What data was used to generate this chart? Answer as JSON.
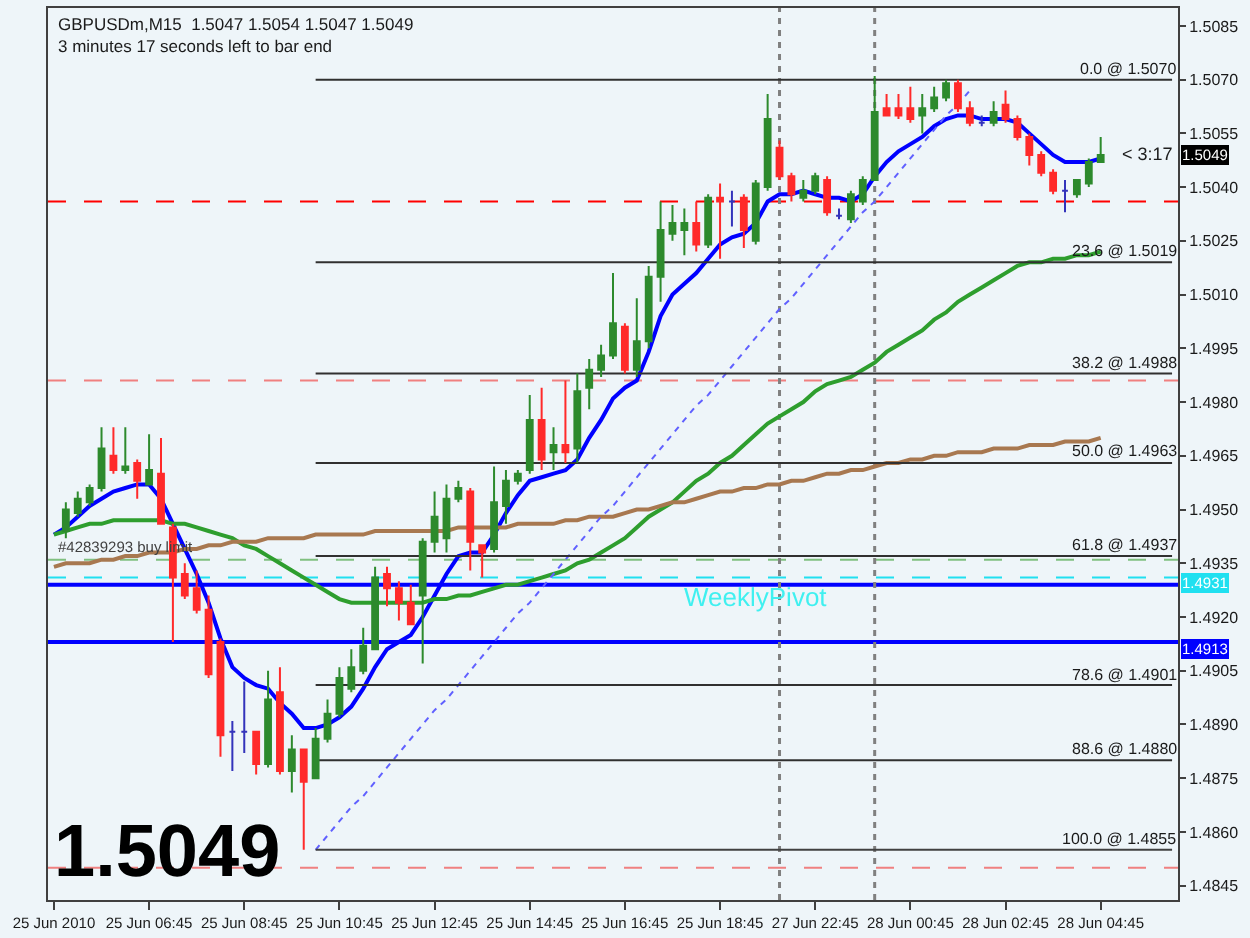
{
  "chart_data": {
    "type": "candlestick",
    "title": "GBPUSDm,M15  1.5047 1.5054 1.5047 1.5049",
    "subtitle": "3 minutes 17 seconds left to bar end",
    "legend": "right",
    "categories": [
      "25 Jun 2010",
      null,
      null,
      null,
      null,
      null,
      null,
      null,
      "25 Jun 06:45",
      null,
      null,
      null,
      null,
      null,
      null,
      null,
      "25 Jun 08:45",
      null,
      null,
      null,
      null,
      null,
      null,
      null,
      "25 Jun 10:45",
      null,
      null,
      null,
      null,
      null,
      null,
      null,
      "25 Jun 12:45",
      null,
      null,
      null,
      null,
      null,
      null,
      null,
      "25 Jun 14:45",
      null,
      null,
      null,
      null,
      null,
      null,
      null,
      "25 Jun 16:45",
      null,
      null,
      null,
      null,
      null,
      null,
      null,
      "25 Jun 18:45",
      null,
      null,
      null,
      null,
      null,
      null,
      null,
      "27 Jun 22:45",
      null,
      null,
      null,
      null,
      null,
      null,
      null,
      "28 Jun 00:45",
      null,
      null,
      null,
      null,
      null,
      null,
      null,
      "28 Jun 02:45",
      null,
      null,
      null,
      null,
      null,
      null,
      null,
      "28 Jun 04:45",
      null,
      null,
      null,
      null,
      null,
      null
    ],
    "ohlc": [
      null,
      [
        1.4944,
        1.4952,
        1.4942,
        1.495
      ],
      [
        1.4949,
        1.4955,
        1.4948,
        1.4953
      ],
      [
        1.4952,
        1.4957,
        1.4951,
        1.4956
      ],
      [
        1.4956,
        1.4973,
        1.4955,
        1.4967
      ],
      [
        1.4965,
        1.4973,
        1.496,
        1.4961
      ],
      [
        1.4961,
        1.4973,
        1.496,
        1.4962
      ],
      [
        1.4963,
        1.4964,
        1.4953,
        1.4958
      ],
      [
        1.4957,
        1.4971,
        1.4957,
        1.4961
      ],
      [
        1.496,
        1.497,
        1.4946,
        1.4946
      ],
      [
        1.4945,
        1.4946,
        1.4913,
        1.4931
      ],
      [
        1.4932,
        1.4935,
        1.4925,
        1.4926
      ],
      [
        1.4928,
        1.4933,
        1.4921,
        1.4922
      ],
      [
        1.4922,
        1.4926,
        1.4903,
        1.4904
      ],
      [
        1.4913,
        1.4914,
        1.4881,
        1.4887
      ],
      [
        1.4888,
        1.4891,
        1.4877,
        1.4888
      ],
      [
        1.4888,
        1.4902,
        1.4882,
        1.4888
      ],
      [
        1.4888,
        1.4888,
        1.4876,
        1.4879
      ],
      [
        1.4879,
        1.4905,
        1.4878,
        1.4897
      ],
      [
        1.4899,
        1.4906,
        1.4876,
        1.4877
      ],
      [
        1.4877,
        1.4887,
        1.4871,
        1.4883
      ],
      [
        1.4883,
        1.4883,
        1.4855,
        1.4874
      ],
      [
        1.4875,
        1.4889,
        1.4875,
        1.4886
      ],
      [
        1.4886,
        1.4897,
        1.4885,
        1.4893
      ],
      [
        1.4893,
        1.4906,
        1.4892,
        1.4903
      ],
      [
        1.49,
        1.4911,
        1.4899,
        1.4906
      ],
      [
        1.4905,
        1.4917,
        1.4904,
        1.4912
      ],
      [
        1.4911,
        1.4934,
        1.4911,
        1.4931
      ],
      [
        1.4932,
        1.4934,
        1.4923,
        1.4928
      ],
      [
        1.4928,
        1.493,
        1.4919,
        1.4924
      ],
      [
        1.4924,
        1.4929,
        1.4918,
        1.4918
      ],
      [
        1.4926,
        1.4942,
        1.4907,
        1.4941
      ],
      [
        1.4941,
        1.4955,
        1.4938,
        1.4948
      ],
      [
        1.4942,
        1.4957,
        1.4938,
        1.4953
      ],
      [
        1.4953,
        1.4958,
        1.4952,
        1.4956
      ],
      [
        1.4955,
        1.4956,
        1.4933,
        1.4941
      ],
      [
        1.494,
        1.494,
        1.4931,
        1.4938
      ],
      [
        1.4939,
        1.4962,
        1.4938,
        1.4952
      ],
      [
        1.4951,
        1.4961,
        1.4946,
        1.4958
      ],
      [
        1.4958,
        1.4961,
        1.4957,
        1.496
      ],
      [
        1.4961,
        1.4982,
        1.496,
        1.4975
      ],
      [
        1.4975,
        1.4984,
        1.4961,
        1.4964
      ],
      [
        1.4966,
        1.4973,
        1.4961,
        1.4968
      ],
      [
        1.4968,
        1.4986,
        1.4963,
        1.4966
      ],
      [
        1.4967,
        1.4988,
        1.4963,
        1.4983
      ],
      [
        1.4984,
        1.4992,
        1.4978,
        1.4989
      ],
      [
        1.4989,
        1.4996,
        1.4987,
        1.4993
      ],
      [
        1.4993,
        1.5016,
        1.4992,
        1.5002
      ],
      [
        1.5001,
        1.5002,
        1.4988,
        1.4989
      ],
      [
        1.4989,
        1.5009,
        1.4987,
        1.4997
      ],
      [
        1.4997,
        1.5018,
        1.4995,
        1.5015
      ],
      [
        1.5015,
        1.5036,
        1.5008,
        1.5028
      ],
      [
        1.5027,
        1.5035,
        1.5025,
        1.503
      ],
      [
        1.5028,
        1.5034,
        1.5021,
        1.503
      ],
      [
        1.503,
        1.5036,
        1.5022,
        1.5024
      ],
      [
        1.5024,
        1.5038,
        1.5023,
        1.5037
      ],
      [
        1.5037,
        1.5041,
        1.502,
        1.5036
      ],
      [
        1.5036,
        1.5039,
        1.5029,
        1.5036
      ],
      [
        1.5037,
        1.5038,
        1.5023,
        1.5028
      ],
      [
        1.5025,
        1.5042,
        1.5024,
        1.5041
      ],
      [
        1.504,
        1.5066,
        1.5039,
        1.5059
      ],
      [
        1.5051,
        1.5053,
        1.5042,
        1.5043
      ],
      [
        1.5043,
        1.5044,
        1.5036,
        1.5038
      ],
      [
        1.5037,
        1.5042,
        1.5036,
        1.5039
      ],
      [
        1.5039,
        1.5044,
        1.5038,
        1.5043
      ],
      [
        1.5042,
        1.5043,
        1.5032,
        1.5033
      ],
      [
        1.5032,
        1.5034,
        1.5031,
        1.5032
      ],
      [
        1.5031,
        1.5039,
        1.503,
        1.5038
      ],
      [
        1.5036,
        1.5043,
        1.5035,
        1.5042
      ],
      [
        1.5042,
        1.5071,
        1.5042,
        1.5061
      ],
      [
        1.5062,
        1.5066,
        1.506,
        1.506
      ],
      [
        1.5062,
        1.5066,
        1.5059,
        1.506
      ],
      [
        1.5062,
        1.5068,
        1.5058,
        1.5059
      ],
      [
        1.506,
        1.5066,
        1.5055,
        1.5062
      ],
      [
        1.5062,
        1.5068,
        1.5061,
        1.5065
      ],
      [
        1.5065,
        1.507,
        1.5064,
        1.5069
      ],
      [
        1.5069,
        1.507,
        1.5061,
        1.5062
      ],
      [
        1.5062,
        1.5064,
        1.5057,
        1.5058
      ],
      [
        1.5058,
        1.506,
        1.5057,
        1.5058
      ],
      [
        1.5058,
        1.5064,
        1.5057,
        1.5061
      ],
      [
        1.5063,
        1.5067,
        1.5058,
        1.5059
      ],
      [
        1.5059,
        1.506,
        1.5053,
        1.5054
      ],
      [
        1.5054,
        1.5055,
        1.5046,
        1.5049
      ],
      [
        1.5049,
        1.505,
        1.5043,
        1.5044
      ],
      [
        1.5044,
        1.5045,
        1.5038,
        1.5039
      ],
      [
        1.5039,
        1.5042,
        1.5033,
        1.5039
      ],
      [
        1.5038,
        1.5042,
        1.5037,
        1.5042
      ],
      [
        1.5041,
        1.5048,
        1.504,
        1.5047
      ],
      [
        1.5047,
        1.5054,
        1.5047,
        1.5049
      ],
      null,
      null,
      null,
      null,
      null,
      null
    ],
    "colors": [
      null,
      "#2d8a2d",
      "#2d8a2d",
      "#2d8a2d",
      "#2d8a2d",
      "#ff2a2a",
      "#2d8a2d",
      "#ff2a2a",
      "#2d8a2d",
      "#ff2a2a",
      "#ff2a2a",
      "#ff2a2a",
      "#ff2a2a",
      "#ff2a2a",
      "#ff2a2a",
      "#3333bb",
      "#3333bb",
      "#ff2a2a",
      "#2d8a2d",
      "#ff2a2a",
      "#2d8a2d",
      "#ff2a2a",
      "#2d8a2d",
      "#2d8a2d",
      "#2d8a2d",
      "#2d8a2d",
      "#2d8a2d",
      "#2d8a2d",
      "#ff2a2a",
      "#ff2a2a",
      "#ff2a2a",
      "#2d8a2d",
      "#2d8a2d",
      "#2d8a2d",
      "#2d8a2d",
      "#ff2a2a",
      "#ff2a2a",
      "#2d8a2d",
      "#2d8a2d",
      "#2d8a2d",
      "#2d8a2d",
      "#ff2a2a",
      "#2d8a2d",
      "#ff2a2a",
      "#2d8a2d",
      "#2d8a2d",
      "#2d8a2d",
      "#2d8a2d",
      "#ff2a2a",
      "#2d8a2d",
      "#2d8a2d",
      "#2d8a2d",
      "#2d8a2d",
      "#2d8a2d",
      "#ff2a2a",
      "#2d8a2d",
      "#ff2a2a",
      "#3333bb",
      "#ff2a2a",
      "#2d8a2d",
      "#2d8a2d",
      "#ff2a2a",
      "#ff2a2a",
      "#2d8a2d",
      "#2d8a2d",
      "#ff2a2a",
      "#3333bb",
      "#2d8a2d",
      "#2d8a2d",
      "#2d8a2d",
      "#ff2a2a",
      "#ff2a2a",
      "#ff2a2a",
      "#2d8a2d",
      "#2d8a2d",
      "#2d8a2d",
      "#ff2a2a",
      "#ff2a2a",
      "#3333bb",
      "#2d8a2d",
      "#ff2a2a",
      "#ff2a2a",
      "#ff2a2a",
      "#ff2a2a",
      "#ff2a2a",
      "#3333bb",
      "#2d8a2d",
      "#2d8a2d",
      "#2d8a2d",
      null,
      null,
      null,
      null,
      null,
      null
    ],
    "series": [
      {
        "type": "line",
        "color": "#0000ff",
        "values": [
          1.4943,
          1.4945,
          1.4948,
          1.4951,
          1.4953,
          1.4955,
          1.4956,
          1.4957,
          1.4957,
          1.4953,
          1.4946,
          1.4939,
          1.4932,
          1.4924,
          1.4914,
          1.4906,
          1.4903,
          1.4901,
          1.49,
          1.4896,
          1.4893,
          1.4889,
          1.4889,
          1.489,
          1.4892,
          1.4895,
          1.49,
          1.4906,
          1.4911,
          1.4913,
          1.4915,
          1.492,
          1.4926,
          1.4932,
          1.4937,
          1.4938,
          1.4938,
          1.4943,
          1.4949,
          1.4954,
          1.4958,
          1.4959,
          1.496,
          1.4961,
          1.4964,
          1.497,
          1.4975,
          1.4981,
          1.4984,
          1.4986,
          1.4994,
          1.5004,
          1.501,
          1.5013,
          1.5016,
          1.502,
          1.5024,
          1.5026,
          1.5027,
          1.503,
          1.5036,
          1.5038,
          1.5038,
          1.5039,
          1.5038,
          1.5037,
          1.5037,
          1.5036,
          1.5038,
          1.5043,
          1.5047,
          1.505,
          1.5052,
          1.5054,
          1.5057,
          1.5059,
          1.506,
          1.506,
          1.5059,
          1.5059,
          1.5059,
          1.5058,
          1.5055,
          1.5052,
          1.5049,
          1.5047,
          1.5047,
          1.5047,
          1.5048,
          null,
          null,
          null,
          null,
          null,
          null
        ]
      },
      {
        "type": "line",
        "color": "#2e9e2e",
        "values": [
          1.4943,
          1.4944,
          1.4945,
          1.4946,
          1.4946,
          1.4947,
          1.4947,
          1.4947,
          1.4947,
          1.4947,
          1.4946,
          1.4946,
          1.4945,
          1.4944,
          1.4943,
          1.4942,
          1.494,
          1.4939,
          1.4937,
          1.4935,
          1.4933,
          1.4931,
          1.4929,
          1.4927,
          1.4925,
          1.4924,
          1.4924,
          1.4924,
          1.4924,
          1.4924,
          1.4924,
          1.4924,
          1.4925,
          1.4925,
          1.4926,
          1.4926,
          1.4927,
          1.4928,
          1.4929,
          1.4929,
          1.493,
          1.4931,
          1.4932,
          1.4933,
          1.4935,
          1.4936,
          1.4938,
          1.494,
          1.4942,
          1.4945,
          1.4948,
          1.495,
          1.4952,
          1.4955,
          1.4958,
          1.496,
          1.4963,
          1.4965,
          1.4968,
          1.4971,
          1.4974,
          1.4976,
          1.4978,
          1.498,
          1.4983,
          1.4985,
          1.4986,
          1.4987,
          1.4989,
          1.4991,
          1.4994,
          1.4996,
          1.4998,
          1.5,
          1.5003,
          1.5005,
          1.5008,
          1.501,
          1.5012,
          1.5014,
          1.5016,
          1.5018,
          1.5019,
          1.5019,
          1.502,
          1.502,
          1.5021,
          1.5021,
          1.5022,
          null,
          null,
          null,
          null,
          null,
          null
        ]
      },
      {
        "type": "line",
        "color": "#a87850",
        "values": [
          1.4934,
          1.4935,
          1.4935,
          1.4935,
          1.4936,
          1.4936,
          1.4937,
          1.4937,
          1.4938,
          1.4938,
          1.4938,
          1.4939,
          1.4939,
          1.494,
          1.494,
          1.4941,
          1.4941,
          1.4941,
          1.4942,
          1.4942,
          1.4942,
          1.4942,
          1.4943,
          1.4943,
          1.4943,
          1.4943,
          1.4943,
          1.4944,
          1.4944,
          1.4944,
          1.4944,
          1.4944,
          1.4944,
          1.4944,
          1.4945,
          1.4945,
          1.4945,
          1.4945,
          1.4945,
          1.4946,
          1.4946,
          1.4946,
          1.4946,
          1.4947,
          1.4947,
          1.4948,
          1.4948,
          1.4948,
          1.4949,
          1.495,
          1.495,
          1.4951,
          1.4952,
          1.4952,
          1.4953,
          1.4954,
          1.4955,
          1.4955,
          1.4956,
          1.4956,
          1.4957,
          1.4957,
          1.4958,
          1.4958,
          1.4959,
          1.496,
          1.496,
          1.4961,
          1.4961,
          1.4962,
          1.4963,
          1.4963,
          1.4964,
          1.4964,
          1.4965,
          1.4965,
          1.4966,
          1.4966,
          1.4966,
          1.4967,
          1.4967,
          1.4967,
          1.4968,
          1.4968,
          1.4968,
          1.4969,
          1.4969,
          1.4969,
          1.497,
          null,
          null,
          null,
          null,
          null,
          null
        ]
      },
      {
        "type": "line",
        "color": "#6060ff",
        "line_style": "dotted",
        "values": [
          null,
          null,
          null,
          null,
          null,
          null,
          null,
          null,
          null,
          null,
          null,
          null,
          null,
          null,
          null,
          null,
          null,
          null,
          null,
          null,
          null,
          null,
          1.4855,
          1.4859,
          1.4863,
          1.4867,
          1.487,
          1.4874,
          1.4878,
          1.4882,
          1.4886,
          1.489,
          1.4894,
          1.4897,
          1.4901,
          1.4905,
          1.4909,
          1.4913,
          1.4917,
          1.4921,
          1.4924,
          1.4928,
          1.4932,
          1.4936,
          1.494,
          1.4944,
          1.4948,
          1.4951,
          1.4955,
          1.4959,
          1.4963,
          1.4967,
          1.4971,
          1.4975,
          1.4979,
          1.4982,
          1.4986,
          1.499,
          1.4994,
          1.4998,
          1.5002,
          1.5006,
          1.5009,
          1.5013,
          1.5017,
          1.5021,
          1.5025,
          1.5029,
          1.5033,
          1.5036,
          1.504,
          1.5044,
          1.5048,
          1.5052,
          1.5056,
          1.506,
          1.5063,
          1.5067,
          null,
          null,
          null,
          null,
          null,
          null,
          null,
          null,
          null,
          null,
          null,
          null,
          null,
          null,
          null,
          null,
          null
        ]
      },
      {
        "type": "line",
        "name": "0.0 @ 1.5070",
        "color": "#303030",
        "values": [
          null,
          null,
          null,
          null,
          null,
          null,
          null,
          null,
          null,
          null,
          null,
          null,
          null,
          null,
          null,
          null,
          null,
          null,
          null,
          null,
          null,
          null,
          1.507,
          1.507,
          1.507,
          1.507,
          1.507,
          1.507,
          1.507,
          1.507,
          1.507,
          1.507,
          1.507,
          1.507,
          1.507,
          1.507,
          1.507,
          1.507,
          1.507,
          1.507,
          1.507,
          1.507,
          1.507,
          1.507,
          1.507,
          1.507,
          1.507,
          1.507,
          1.507,
          1.507,
          1.507,
          1.507,
          1.507,
          1.507,
          1.507,
          1.507,
          1.507,
          1.507,
          1.507,
          1.507,
          1.507,
          1.507,
          1.507,
          1.507,
          1.507,
          1.507,
          1.507,
          1.507,
          1.507,
          1.507,
          1.507,
          1.507,
          1.507,
          1.507,
          1.507,
          1.507,
          1.507,
          1.507,
          1.507,
          1.507,
          1.507,
          1.507,
          1.507,
          1.507,
          1.507,
          1.507,
          1.507,
          1.507,
          1.507,
          1.507,
          1.507,
          1.507,
          1.507,
          1.507,
          1.507
        ]
      },
      {
        "type": "line",
        "name": "23.6 @ 1.5019",
        "color": "#303030",
        "values": [
          null,
          null,
          null,
          null,
          null,
          null,
          null,
          null,
          null,
          null,
          null,
          null,
          null,
          null,
          null,
          null,
          null,
          null,
          null,
          null,
          null,
          null,
          1.5019,
          1.5019,
          1.5019,
          1.5019,
          1.5019,
          1.5019,
          1.5019,
          1.5019,
          1.5019,
          1.5019,
          1.5019,
          1.5019,
          1.5019,
          1.5019,
          1.5019,
          1.5019,
          1.5019,
          1.5019,
          1.5019,
          1.5019,
          1.5019,
          1.5019,
          1.5019,
          1.5019,
          1.5019,
          1.5019,
          1.5019,
          1.5019,
          1.5019,
          1.5019,
          1.5019,
          1.5019,
          1.5019,
          1.5019,
          1.5019,
          1.5019,
          1.5019,
          1.5019,
          1.5019,
          1.5019,
          1.5019,
          1.5019,
          1.5019,
          1.5019,
          1.5019,
          1.5019,
          1.5019,
          1.5019,
          1.5019,
          1.5019,
          1.5019,
          1.5019,
          1.5019,
          1.5019,
          1.5019,
          1.5019,
          1.5019,
          1.5019,
          1.5019,
          1.5019,
          1.5019,
          1.5019,
          1.5019,
          1.5019,
          1.5019,
          1.5019,
          1.5019,
          1.5019,
          1.5019,
          1.5019,
          1.5019,
          1.5019,
          1.5019
        ]
      },
      {
        "type": "line",
        "name": "38.2 @ 1.4988",
        "color": "#303030",
        "values": [
          null,
          null,
          null,
          null,
          null,
          null,
          null,
          null,
          null,
          null,
          null,
          null,
          null,
          null,
          null,
          null,
          null,
          null,
          null,
          null,
          null,
          null,
          1.4988,
          1.4988,
          1.4988,
          1.4988,
          1.4988,
          1.4988,
          1.4988,
          1.4988,
          1.4988,
          1.4988,
          1.4988,
          1.4988,
          1.4988,
          1.4988,
          1.4988,
          1.4988,
          1.4988,
          1.4988,
          1.4988,
          1.4988,
          1.4988,
          1.4988,
          1.4988,
          1.4988,
          1.4988,
          1.4988,
          1.4988,
          1.4988,
          1.4988,
          1.4988,
          1.4988,
          1.4988,
          1.4988,
          1.4988,
          1.4988,
          1.4988,
          1.4988,
          1.4988,
          1.4988,
          1.4988,
          1.4988,
          1.4988,
          1.4988,
          1.4988,
          1.4988,
          1.4988,
          1.4988,
          1.4988,
          1.4988,
          1.4988,
          1.4988,
          1.4988,
          1.4988,
          1.4988,
          1.4988,
          1.4988,
          1.4988,
          1.4988,
          1.4988,
          1.4988,
          1.4988,
          1.4988,
          1.4988,
          1.4988,
          1.4988,
          1.4988,
          1.4988,
          1.4988,
          1.4988,
          1.4988,
          1.4988,
          1.4988,
          1.4988
        ]
      },
      {
        "type": "line",
        "name": "50.0 @ 1.4963",
        "color": "#303030",
        "values": [
          null,
          null,
          null,
          null,
          null,
          null,
          null,
          null,
          null,
          null,
          null,
          null,
          null,
          null,
          null,
          null,
          null,
          null,
          null,
          null,
          null,
          null,
          1.4963,
          1.4963,
          1.4963,
          1.4963,
          1.4963,
          1.4963,
          1.4963,
          1.4963,
          1.4963,
          1.4963,
          1.4963,
          1.4963,
          1.4963,
          1.4963,
          1.4963,
          1.4963,
          1.4963,
          1.4963,
          1.4963,
          1.4963,
          1.4963,
          1.4963,
          1.4963,
          1.4963,
          1.4963,
          1.4963,
          1.4963,
          1.4963,
          1.4963,
          1.4963,
          1.4963,
          1.4963,
          1.4963,
          1.4963,
          1.4963,
          1.4963,
          1.4963,
          1.4963,
          1.4963,
          1.4963,
          1.4963,
          1.4963,
          1.4963,
          1.4963,
          1.4963,
          1.4963,
          1.4963,
          1.4963,
          1.4963,
          1.4963,
          1.4963,
          1.4963,
          1.4963,
          1.4963,
          1.4963,
          1.4963,
          1.4963,
          1.4963,
          1.4963,
          1.4963,
          1.4963,
          1.4963,
          1.4963,
          1.4963,
          1.4963,
          1.4963,
          1.4963,
          1.4963,
          1.4963,
          1.4963,
          1.4963,
          1.4963,
          1.4963
        ]
      },
      {
        "type": "line",
        "name": "61.8 @ 1.4937",
        "color": "#303030",
        "values": [
          null,
          null,
          null,
          null,
          null,
          null,
          null,
          null,
          null,
          null,
          null,
          null,
          null,
          null,
          null,
          null,
          null,
          null,
          null,
          null,
          null,
          null,
          1.4937,
          1.4937,
          1.4937,
          1.4937,
          1.4937,
          1.4937,
          1.4937,
          1.4937,
          1.4937,
          1.4937,
          1.4937,
          1.4937,
          1.4937,
          1.4937,
          1.4937,
          1.4937,
          1.4937,
          1.4937,
          1.4937,
          1.4937,
          1.4937,
          1.4937,
          1.4937,
          1.4937,
          1.4937,
          1.4937,
          1.4937,
          1.4937,
          1.4937,
          1.4937,
          1.4937,
          1.4937,
          1.4937,
          1.4937,
          1.4937,
          1.4937,
          1.4937,
          1.4937,
          1.4937,
          1.4937,
          1.4937,
          1.4937,
          1.4937,
          1.4937,
          1.4937,
          1.4937,
          1.4937,
          1.4937,
          1.4937,
          1.4937,
          1.4937,
          1.4937,
          1.4937,
          1.4937,
          1.4937,
          1.4937,
          1.4937,
          1.4937,
          1.4937,
          1.4937,
          1.4937,
          1.4937,
          1.4937,
          1.4937,
          1.4937,
          1.4937,
          1.4937,
          1.4937,
          1.4937,
          1.4937,
          1.4937,
          1.4937,
          1.4937
        ]
      },
      {
        "type": "line",
        "name": "78.6 @ 1.4901",
        "color": "#303030",
        "values": [
          null,
          null,
          null,
          null,
          null,
          null,
          null,
          null,
          null,
          null,
          null,
          null,
          null,
          null,
          null,
          null,
          null,
          null,
          null,
          null,
          null,
          null,
          1.4901,
          1.4901,
          1.4901,
          1.4901,
          1.4901,
          1.4901,
          1.4901,
          1.4901,
          1.4901,
          1.4901,
          1.4901,
          1.4901,
          1.4901,
          1.4901,
          1.4901,
          1.4901,
          1.4901,
          1.4901,
          1.4901,
          1.4901,
          1.4901,
          1.4901,
          1.4901,
          1.4901,
          1.4901,
          1.4901,
          1.4901,
          1.4901,
          1.4901,
          1.4901,
          1.4901,
          1.4901,
          1.4901,
          1.4901,
          1.4901,
          1.4901,
          1.4901,
          1.4901,
          1.4901,
          1.4901,
          1.4901,
          1.4901,
          1.4901,
          1.4901,
          1.4901,
          1.4901,
          1.4901,
          1.4901,
          1.4901,
          1.4901,
          1.4901,
          1.4901,
          1.4901,
          1.4901,
          1.4901,
          1.4901,
          1.4901,
          1.4901,
          1.4901,
          1.4901,
          1.4901,
          1.4901,
          1.4901,
          1.4901,
          1.4901,
          1.4901,
          1.4901,
          1.4901,
          1.4901,
          1.4901,
          1.4901,
          1.4901,
          1.4901
        ]
      },
      {
        "type": "line",
        "name": "88.6 @ 1.4880",
        "color": "#303030",
        "values": [
          null,
          null,
          null,
          null,
          null,
          null,
          null,
          null,
          null,
          null,
          null,
          null,
          null,
          null,
          null,
          null,
          null,
          null,
          null,
          null,
          null,
          null,
          1.488,
          1.488,
          1.488,
          1.488,
          1.488,
          1.488,
          1.488,
          1.488,
          1.488,
          1.488,
          1.488,
          1.488,
          1.488,
          1.488,
          1.488,
          1.488,
          1.488,
          1.488,
          1.488,
          1.488,
          1.488,
          1.488,
          1.488,
          1.488,
          1.488,
          1.488,
          1.488,
          1.488,
          1.488,
          1.488,
          1.488,
          1.488,
          1.488,
          1.488,
          1.488,
          1.488,
          1.488,
          1.488,
          1.488,
          1.488,
          1.488,
          1.488,
          1.488,
          1.488,
          1.488,
          1.488,
          1.488,
          1.488,
          1.488,
          1.488,
          1.488,
          1.488,
          1.488,
          1.488,
          1.488,
          1.488,
          1.488,
          1.488,
          1.488,
          1.488,
          1.488,
          1.488,
          1.488,
          1.488,
          1.488,
          1.488,
          1.488,
          1.488,
          1.488,
          1.488,
          1.488,
          1.488,
          1.488
        ]
      },
      {
        "type": "line",
        "name": "100.0 @ 1.4855",
        "color": "#404040",
        "values": [
          null,
          null,
          null,
          null,
          null,
          null,
          null,
          null,
          null,
          null,
          null,
          null,
          null,
          null,
          null,
          null,
          null,
          null,
          null,
          null,
          null,
          null,
          1.4855,
          1.4855,
          1.4855,
          1.4855,
          1.4855,
          1.4855,
          1.4855,
          1.4855,
          1.4855,
          1.4855,
          1.4855,
          1.4855,
          1.4855,
          1.4855,
          1.4855,
          1.4855,
          1.4855,
          1.4855,
          1.4855,
          1.4855,
          1.4855,
          1.4855,
          1.4855,
          1.4855,
          1.4855,
          1.4855,
          1.4855,
          1.4855,
          1.4855,
          1.4855,
          1.4855,
          1.4855,
          1.4855,
          1.4855,
          1.4855,
          1.4855,
          1.4855,
          1.4855,
          1.4855,
          1.4855,
          1.4855,
          1.4855,
          1.4855,
          1.4855,
          1.4855,
          1.4855,
          1.4855,
          1.4855,
          1.4855,
          1.4855,
          1.4855,
          1.4855,
          1.4855,
          1.4855,
          1.4855,
          1.4855,
          1.4855,
          1.4855,
          1.4855,
          1.4855,
          1.4855,
          1.4855,
          1.4855,
          1.4855,
          1.4855,
          1.4855,
          1.4855,
          1.4855,
          1.4855,
          1.4855,
          1.4855,
          1.4855,
          1.4855
        ]
      }
    ],
    "ref_lines": [
      {
        "axis": "y",
        "value": 1.5036,
        "color": "#ff0000",
        "line_style": "dashed"
      },
      {
        "axis": "y",
        "value": 1.4986,
        "color": "#f08080",
        "line_style": "dashed"
      },
      {
        "axis": "y",
        "value": 1.4936,
        "color": "#80c080",
        "line_style": "dashed"
      },
      {
        "axis": "y",
        "value": 1.4931,
        "label": "1.4931",
        "color": "#20e0f0",
        "line_style": "dashed"
      },
      {
        "axis": "y",
        "value": 1.4929,
        "color": "#0000ff"
      },
      {
        "axis": "y",
        "value": 1.4913,
        "label": "1.4913",
        "color": "#0000ff"
      },
      {
        "axis": "y",
        "value": 1.485,
        "color": "#f08080",
        "line_style": "dashed"
      }
    ],
    "annotations": [
      {
        "text": "1.5049",
        "y": 1.5049
      },
      "< 3:17",
      {
        "text": "#42839293 buy limit",
        "y": 1.4936
      },
      {
        "text": "WeeklyPivot",
        "y": 1.4931
      },
      "1.5049"
    ],
    "ylim": [
      1.4841,
      1.509
    ],
    "yticks": [
      1.5085,
      {
        "value": 1.507,
        "label": "1.5070"
      },
      1.5055,
      {
        "value": 1.504,
        "label": "1.5040"
      },
      1.5025,
      {
        "value": 1.501,
        "label": "1.5010"
      },
      1.4995,
      {
        "value": 1.498,
        "label": "1.4980"
      },
      1.4965,
      {
        "value": 1.495,
        "label": "1.4950"
      },
      1.4935,
      {
        "value": 1.492,
        "label": "1.4920"
      },
      1.4905,
      {
        "value": 1.489,
        "label": "1.4890"
      },
      1.4875,
      {
        "value": 1.486,
        "label": "1.4860"
      },
      1.4845
    ]
  }
}
